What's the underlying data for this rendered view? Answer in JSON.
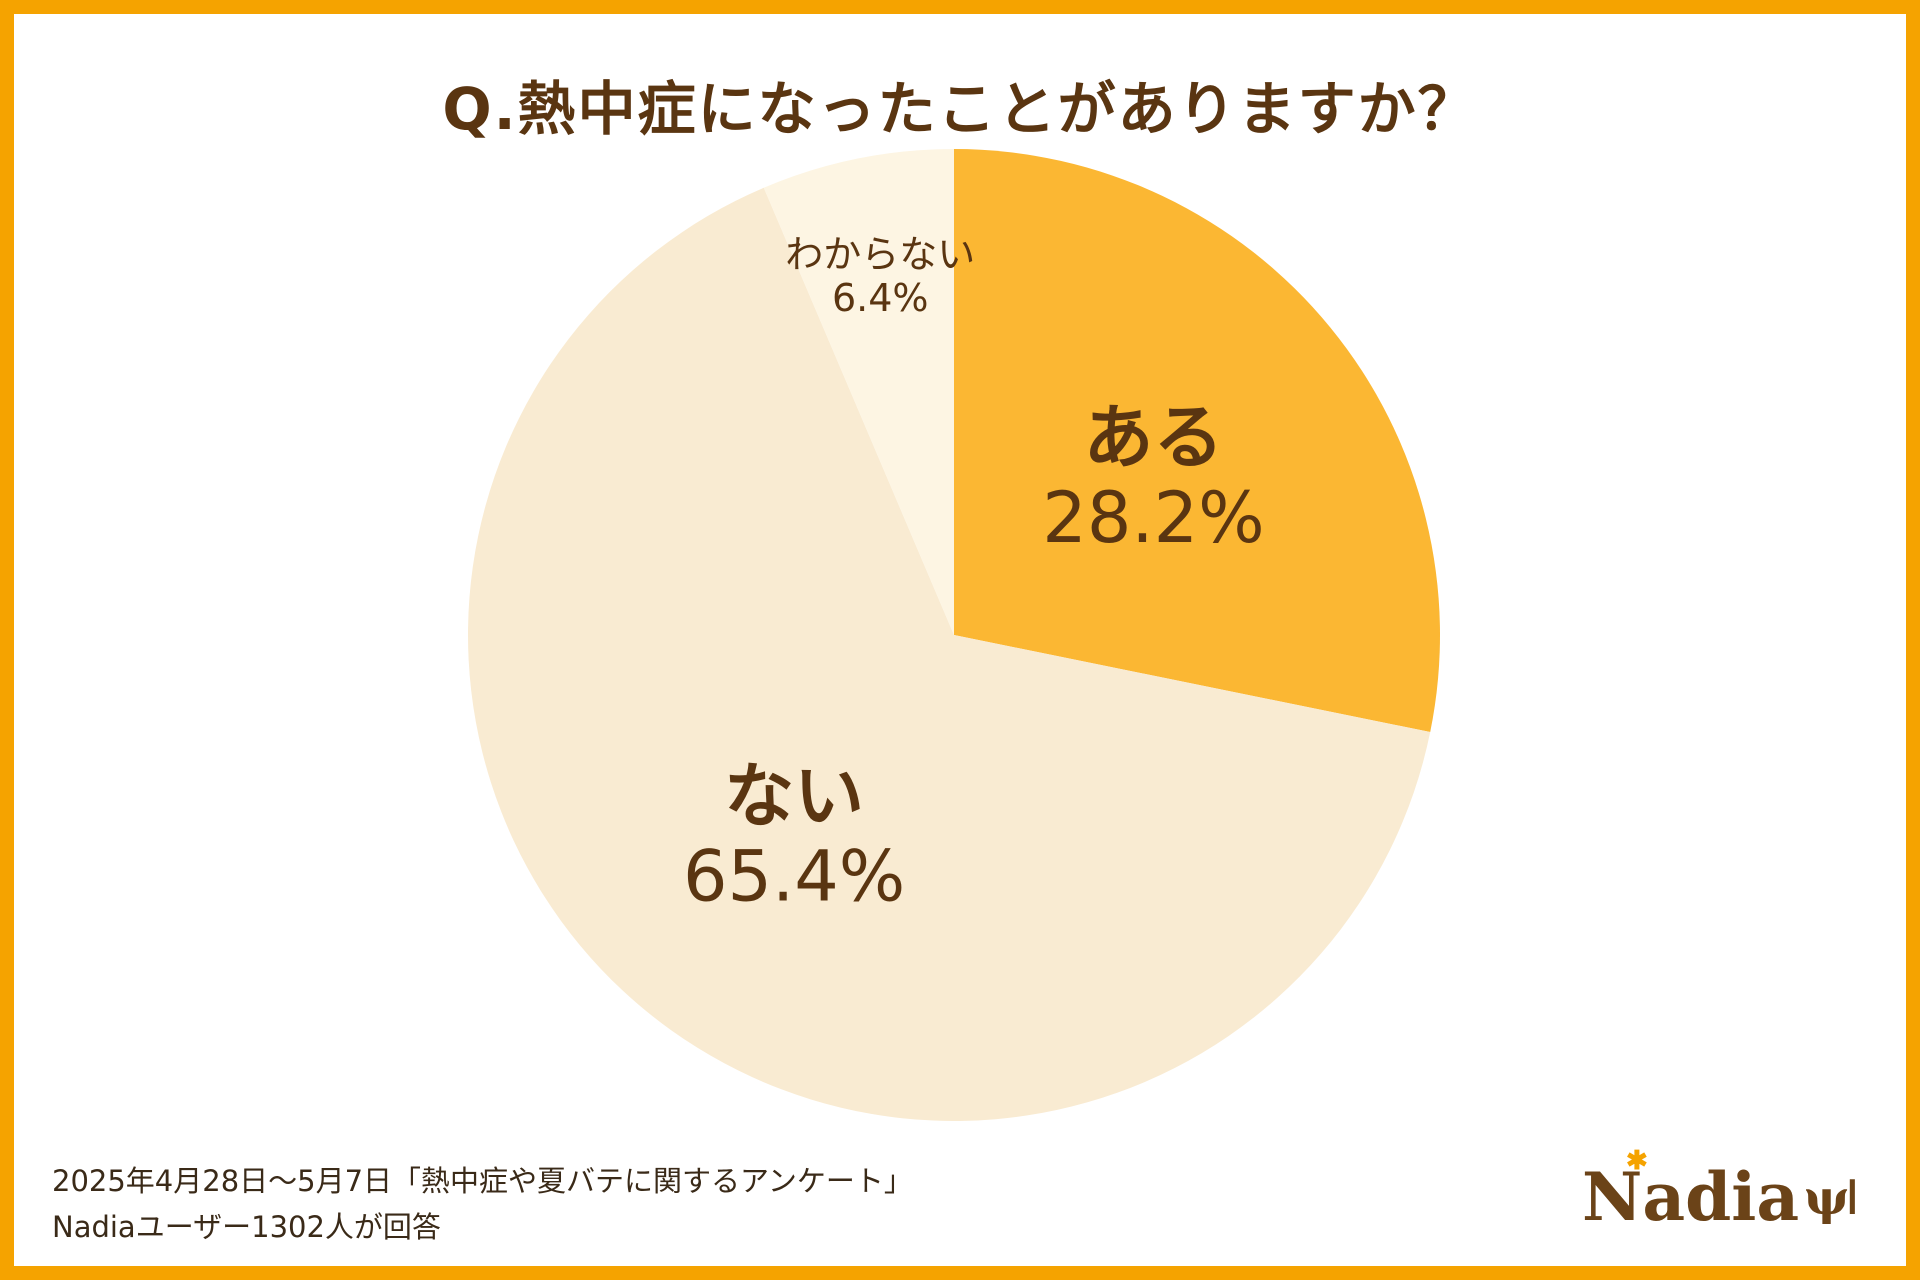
{
  "chart_data": {
    "type": "pie",
    "title": "Q.熱中症になったことがありますか？",
    "slices": [
      {
        "label": "ある",
        "value": 28.2,
        "value_label": "28.2%",
        "color": "#fbb733"
      },
      {
        "label": "ない",
        "value": 65.4,
        "value_label": "65.4%",
        "color": "#f9ebd2"
      },
      {
        "label": "わからない",
        "value": 6.4,
        "value_label": "6.4%",
        "color": "#fdf5e3"
      }
    ],
    "start": "12 o'clock",
    "direction": "clockwise"
  },
  "footer": {
    "line1": "2025年4月28日～5月7日「熱中症や夏バテに関するアンケート」",
    "line2": "Nadiaユーザー1302人が回答"
  },
  "logo": {
    "text": "Nadia",
    "star_icon": "star-icon",
    "cutlery_icon": "cutlery-icon"
  },
  "colors": {
    "frame": "#f5a300",
    "text": "#5a3511"
  }
}
